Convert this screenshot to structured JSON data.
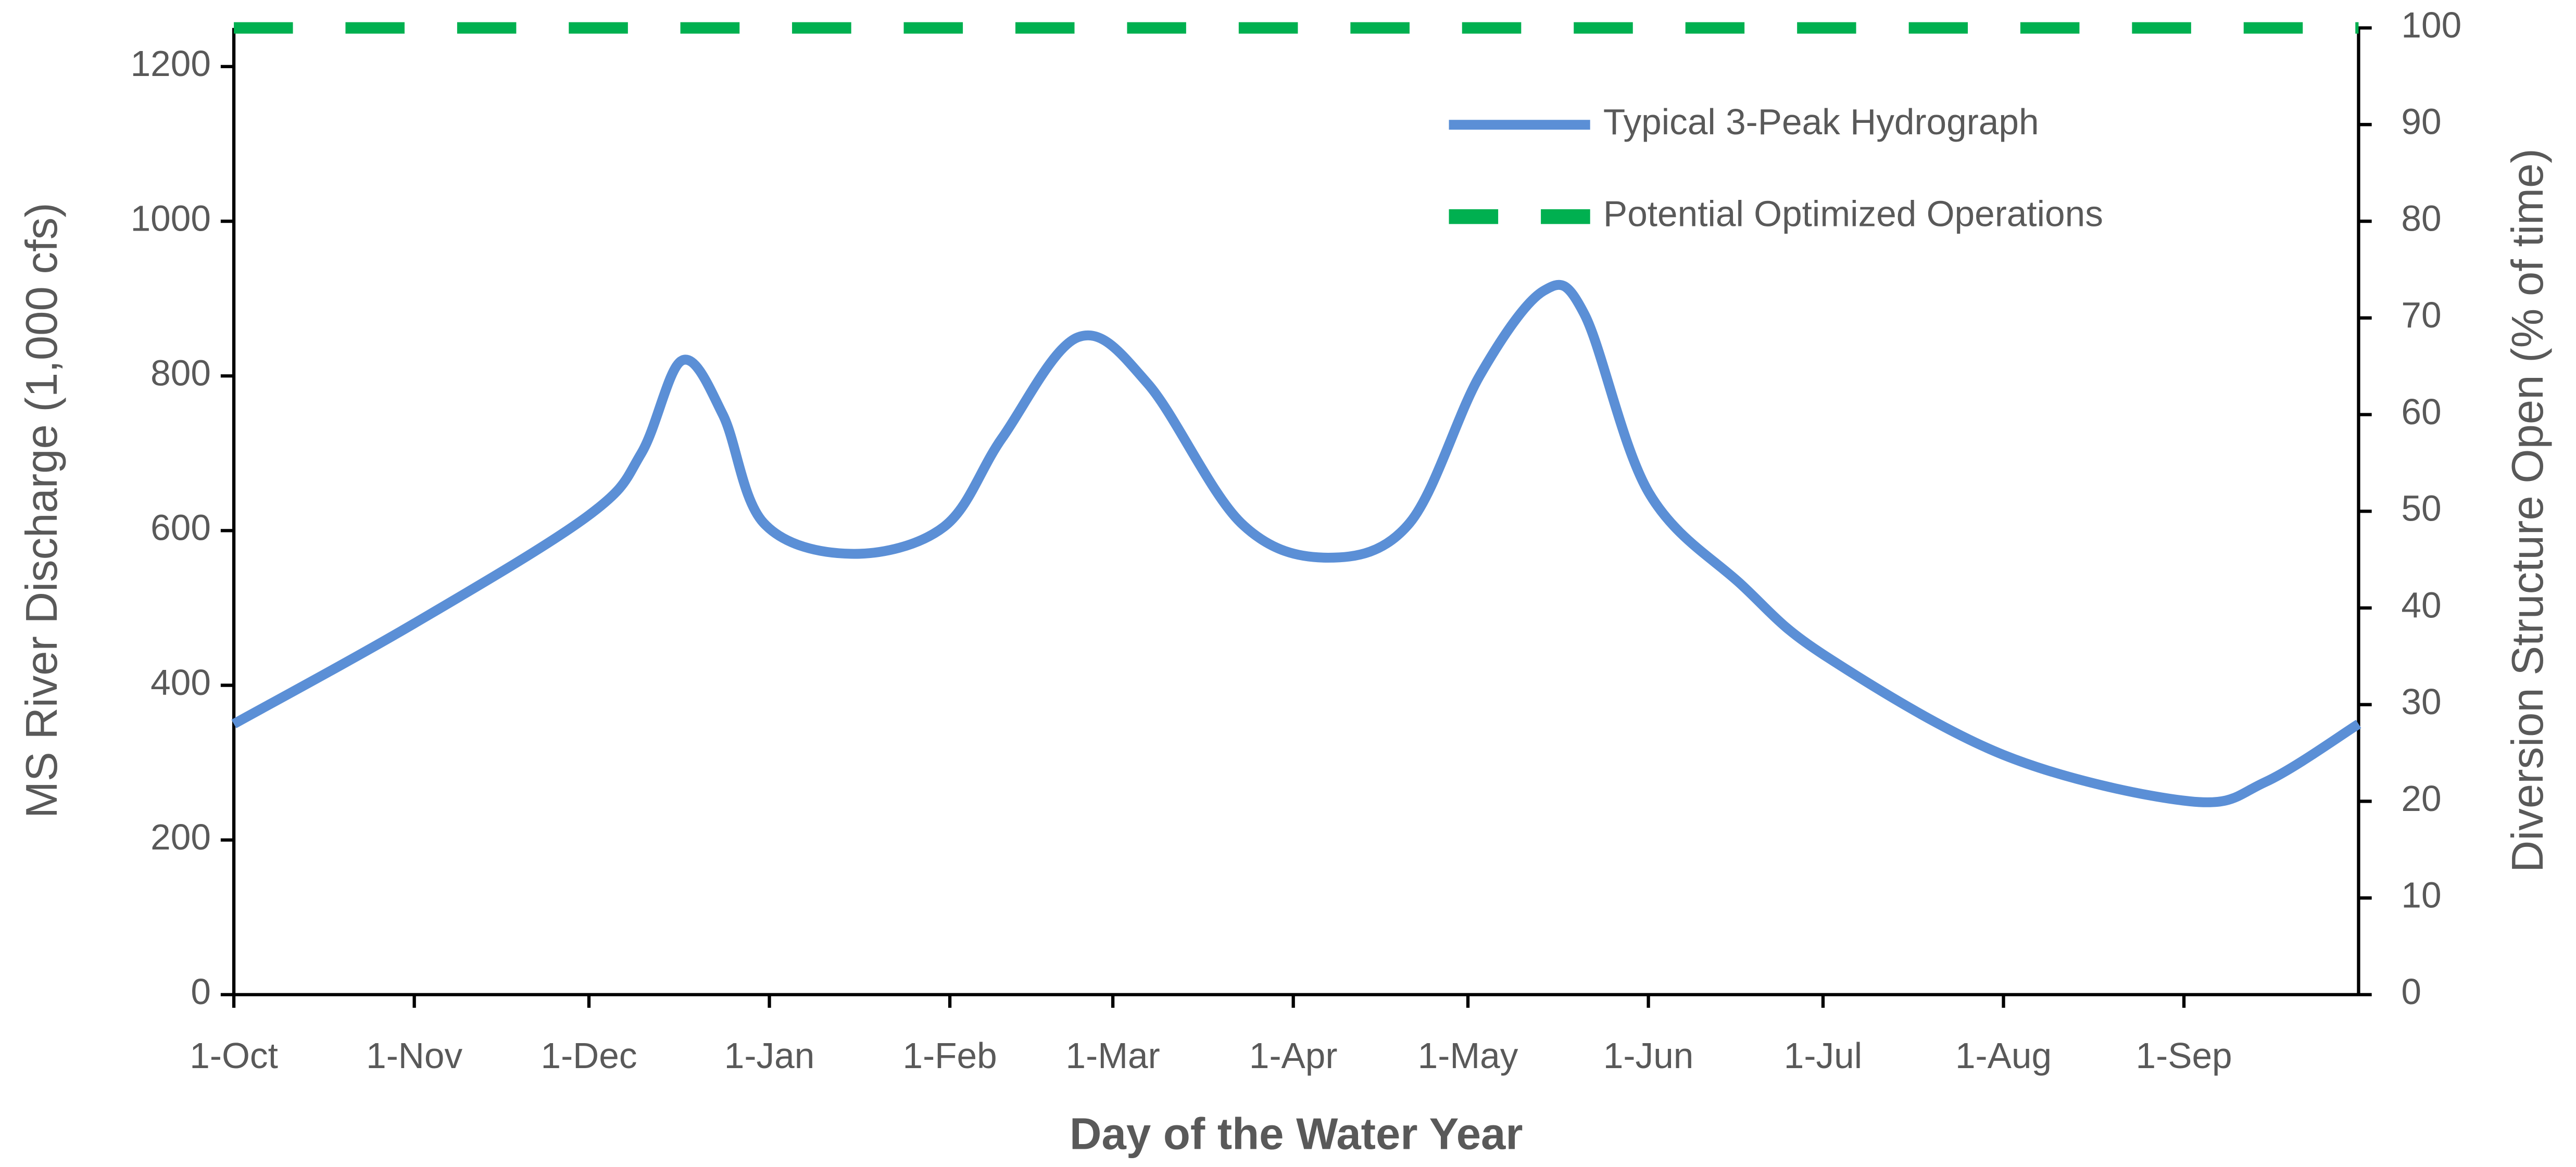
{
  "chart_data": {
    "type": "line",
    "x_label": "Day of the Water Year",
    "y_label": "MS River Discharge (1,000 cfs)",
    "y2_label": "Diversion Structure Open (% of time)",
    "xlim": [
      0,
      365
    ],
    "xticks": [
      {
        "value": 0,
        "label": "1-Oct"
      },
      {
        "value": 31,
        "label": "1-Nov"
      },
      {
        "value": 61,
        "label": "1-Dec"
      },
      {
        "value": 92,
        "label": "1-Jan"
      },
      {
        "value": 123,
        "label": "1-Feb"
      },
      {
        "value": 151,
        "label": "1-Mar"
      },
      {
        "value": 182,
        "label": "1-Apr"
      },
      {
        "value": 212,
        "label": "1-May"
      },
      {
        "value": 243,
        "label": "1-Jun"
      },
      {
        "value": 273,
        "label": "1-Jul"
      },
      {
        "value": 304,
        "label": "1-Aug"
      },
      {
        "value": 335,
        "label": "1-Sep"
      }
    ],
    "ylim": [
      0,
      1250
    ],
    "yticks": [
      0,
      200,
      400,
      600,
      800,
      1000,
      1200
    ],
    "y2lim": [
      0,
      100
    ],
    "y2ticks": [
      0,
      10,
      20,
      30,
      40,
      50,
      60,
      70,
      80,
      90,
      100
    ],
    "legend": "upper right",
    "series": [
      {
        "name": "Typical 3-Peak Hydrograph",
        "color": "#5b8fd6",
        "x": [
          0,
          31,
          61,
          70,
          77,
          84,
          91,
          106,
          122,
          132,
          145,
          157,
          173,
          188,
          202,
          214,
          225,
          232,
          243,
          259,
          273,
          304,
          336,
          349,
          365
        ],
        "values": [
          350,
          480,
          620,
          700,
          820,
          750,
          610,
          570,
          605,
          720,
          850,
          790,
          610,
          565,
          610,
          800,
          910,
          880,
          650,
          530,
          440,
          310,
          250,
          275,
          350
        ]
      },
      {
        "name": "Potential Optimized Operations",
        "color": "#00b050",
        "dashed": true,
        "axis": "y2",
        "x": [
          0,
          365
        ],
        "values": [
          100,
          100
        ]
      }
    ]
  }
}
